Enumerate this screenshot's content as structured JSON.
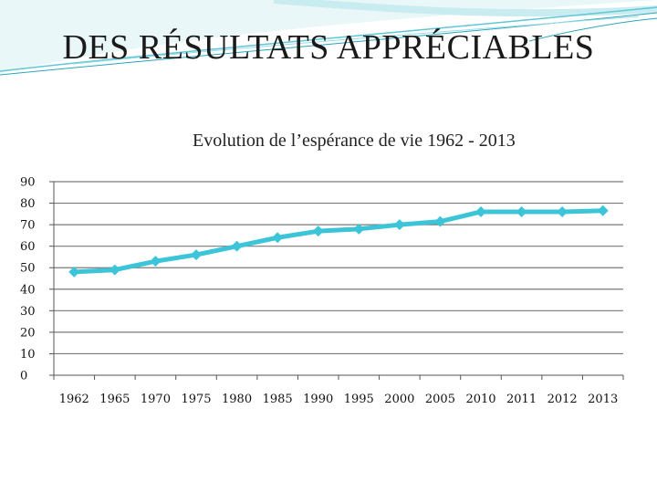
{
  "slide": {
    "title": "DES RÉSULTATS APPRÉCIABLES"
  },
  "chart_data": {
    "type": "line",
    "title": "Evolution de l’espérance de vie 1962 - 2013",
    "xlabel": "",
    "ylabel": "",
    "categories": [
      "1962",
      "1965",
      "1970",
      "1975",
      "1980",
      "1985",
      "1990",
      "1995",
      "2000",
      "2005",
      "2010",
      "2011",
      "2012",
      "2013"
    ],
    "series": [
      {
        "name": "Espérance de vie",
        "values": [
          48,
          49,
          53,
          56,
          60,
          64,
          67,
          68,
          70,
          71.5,
          76,
          76,
          76,
          76.5
        ],
        "color": "#3cc5d8"
      }
    ],
    "ylim": [
      0,
      90
    ],
    "yticks": [
      0,
      10,
      20,
      30,
      40,
      50,
      60,
      70,
      80,
      90
    ],
    "grid": true,
    "legend": "none"
  }
}
